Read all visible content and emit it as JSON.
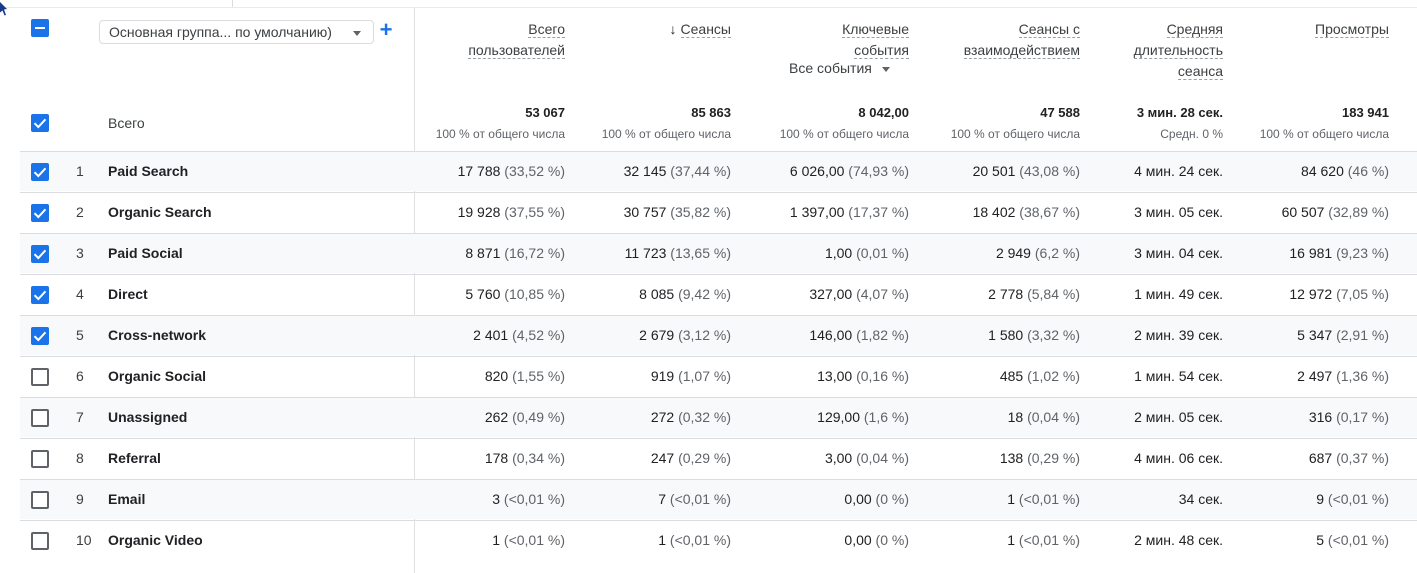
{
  "toolbar": {
    "dimension_label": "Основная группа... по умолчанию)",
    "add_label": "+"
  },
  "headers": {
    "users": [
      "Всего",
      "пользователей"
    ],
    "sessions": "Сеансы",
    "key_events": [
      "Ключевые",
      "события"
    ],
    "key_events_selector": "Все события",
    "engaged": [
      "Сеансы с",
      "взаимодействием"
    ],
    "avg_duration": [
      "Средняя",
      "длительность",
      "сеанса"
    ],
    "views": "Просмотры"
  },
  "totals": {
    "label": "Всего",
    "users": "53 067",
    "users_sub": "100 % от общего числа",
    "sessions": "85 863",
    "sessions_sub": "100 % от общего числа",
    "key_events": "8 042,00",
    "key_events_sub": "100 % от общего числа",
    "engaged": "47 588",
    "engaged_sub": "100 % от общего числа",
    "avg_duration": "3 мин. 28 сек.",
    "avg_duration_sub": "Средн. 0 %",
    "views": "183 941",
    "views_sub": "100 % от общего числа"
  },
  "colors": {
    "accent": "#1a73e8"
  },
  "rows": [
    {
      "rank": "1",
      "name": "Paid Search",
      "checked": true,
      "users": "17 788",
      "users_pct": "(33,52 %)",
      "sessions": "32 145",
      "sessions_pct": "(37,44 %)",
      "key_events": "6 026,00",
      "key_events_pct": "(74,93 %)",
      "engaged": "20 501",
      "engaged_pct": "(43,08 %)",
      "avg_duration": "4 мин. 24 сек.",
      "views": "84 620",
      "views_pct": "(46 %)"
    },
    {
      "rank": "2",
      "name": "Organic Search",
      "checked": true,
      "users": "19 928",
      "users_pct": "(37,55 %)",
      "sessions": "30 757",
      "sessions_pct": "(35,82 %)",
      "key_events": "1 397,00",
      "key_events_pct": "(17,37 %)",
      "engaged": "18 402",
      "engaged_pct": "(38,67 %)",
      "avg_duration": "3 мин. 05 сек.",
      "views": "60 507",
      "views_pct": "(32,89 %)"
    },
    {
      "rank": "3",
      "name": "Paid Social",
      "checked": true,
      "users": "8 871",
      "users_pct": "(16,72 %)",
      "sessions": "11 723",
      "sessions_pct": "(13,65 %)",
      "key_events": "1,00",
      "key_events_pct": "(0,01 %)",
      "engaged": "2 949",
      "engaged_pct": "(6,2 %)",
      "avg_duration": "3 мин. 04 сек.",
      "views": "16 981",
      "views_pct": "(9,23 %)"
    },
    {
      "rank": "4",
      "name": "Direct",
      "checked": true,
      "users": "5 760",
      "users_pct": "(10,85 %)",
      "sessions": "8 085",
      "sessions_pct": "(9,42 %)",
      "key_events": "327,00",
      "key_events_pct": "(4,07 %)",
      "engaged": "2 778",
      "engaged_pct": "(5,84 %)",
      "avg_duration": "1 мин. 49 сек.",
      "views": "12 972",
      "views_pct": "(7,05 %)"
    },
    {
      "rank": "5",
      "name": "Cross-network",
      "checked": true,
      "users": "2 401",
      "users_pct": "(4,52 %)",
      "sessions": "2 679",
      "sessions_pct": "(3,12 %)",
      "key_events": "146,00",
      "key_events_pct": "(1,82 %)",
      "engaged": "1 580",
      "engaged_pct": "(3,32 %)",
      "avg_duration": "2 мин. 39 сек.",
      "views": "5 347",
      "views_pct": "(2,91 %)"
    },
    {
      "rank": "6",
      "name": "Organic Social",
      "checked": false,
      "users": "820",
      "users_pct": "(1,55 %)",
      "sessions": "919",
      "sessions_pct": "(1,07 %)",
      "key_events": "13,00",
      "key_events_pct": "(0,16 %)",
      "engaged": "485",
      "engaged_pct": "(1,02 %)",
      "avg_duration": "1 мин. 54 сек.",
      "views": "2 497",
      "views_pct": "(1,36 %)"
    },
    {
      "rank": "7",
      "name": "Unassigned",
      "checked": false,
      "users": "262",
      "users_pct": "(0,49 %)",
      "sessions": "272",
      "sessions_pct": "(0,32 %)",
      "key_events": "129,00",
      "key_events_pct": "(1,6 %)",
      "engaged": "18",
      "engaged_pct": "(0,04 %)",
      "avg_duration": "2 мин. 05 сек.",
      "views": "316",
      "views_pct": "(0,17 %)"
    },
    {
      "rank": "8",
      "name": "Referral",
      "checked": false,
      "users": "178",
      "users_pct": "(0,34 %)",
      "sessions": "247",
      "sessions_pct": "(0,29 %)",
      "key_events": "3,00",
      "key_events_pct": "(0,04 %)",
      "engaged": "138",
      "engaged_pct": "(0,29 %)",
      "avg_duration": "4 мин. 06 сек.",
      "views": "687",
      "views_pct": "(0,37 %)"
    },
    {
      "rank": "9",
      "name": "Email",
      "checked": false,
      "users": "3",
      "users_pct": "(<0,01 %)",
      "sessions": "7",
      "sessions_pct": "(<0,01 %)",
      "key_events": "0,00",
      "key_events_pct": "(0 %)",
      "engaged": "1",
      "engaged_pct": "(<0,01 %)",
      "avg_duration": "34 сек.",
      "views": "9",
      "views_pct": "(<0,01 %)"
    },
    {
      "rank": "10",
      "name": "Organic Video",
      "checked": false,
      "users": "1",
      "users_pct": "(<0,01 %)",
      "sessions": "1",
      "sessions_pct": "(<0,01 %)",
      "key_events": "0,00",
      "key_events_pct": "(0 %)",
      "engaged": "1",
      "engaged_pct": "(<0,01 %)",
      "avg_duration": "2 мин. 48 сек.",
      "views": "5",
      "views_pct": "(<0,01 %)"
    }
  ]
}
